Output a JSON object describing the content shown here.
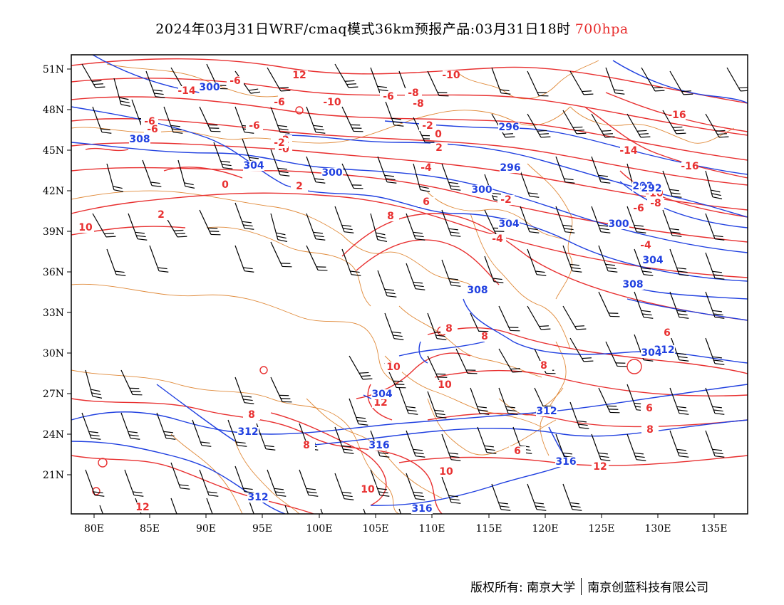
{
  "title": {
    "main": "2024年03月31日WRF/cmaq模式36km预报产品:03月31日18时",
    "level": "700hpa"
  },
  "colors": {
    "temperature": "#e83030",
    "geopotential": "#2040e0",
    "boundary": "#e08a3a",
    "wind": "#000000"
  },
  "axes": {
    "lon_ticks": [
      "80E",
      "85E",
      "90E",
      "95E",
      "100E",
      "105E",
      "110E",
      "115E",
      "120E",
      "125E",
      "130E",
      "135E"
    ],
    "lat_ticks": [
      "51N",
      "48N",
      "45N",
      "42N",
      "39N",
      "36N",
      "33N",
      "30N",
      "27N",
      "24N",
      "21N"
    ]
  },
  "temperature_labels": [
    "-14",
    "12",
    "-10",
    "-8",
    "-6",
    "-6",
    "-10",
    "-8",
    "-6",
    "-6",
    "-2",
    "-2",
    "-4",
    "0",
    "-0",
    "2",
    "-16",
    "-14",
    "-16",
    "-10",
    "-6",
    "-8",
    "-4",
    "0",
    "2",
    "-2",
    "-6",
    "8",
    "6",
    "-6",
    "-4",
    "-2",
    "2",
    "10",
    "10",
    "12",
    "8",
    "8",
    "6",
    "6",
    "8",
    "6",
    "8",
    "10",
    "10",
    "12",
    "10",
    "12",
    "8",
    "8"
  ],
  "height_labels": [
    "300",
    "296",
    "308",
    "304",
    "300",
    "292",
    "296",
    "300",
    "292",
    "304",
    "300",
    "304",
    "308",
    "308",
    "304",
    "312",
    "304",
    "312",
    "312",
    "316",
    "316",
    "312",
    "316"
  ],
  "footer": {
    "copyright": "版权所有: 南京大学",
    "company": "南京创蓝科技有限公司"
  }
}
